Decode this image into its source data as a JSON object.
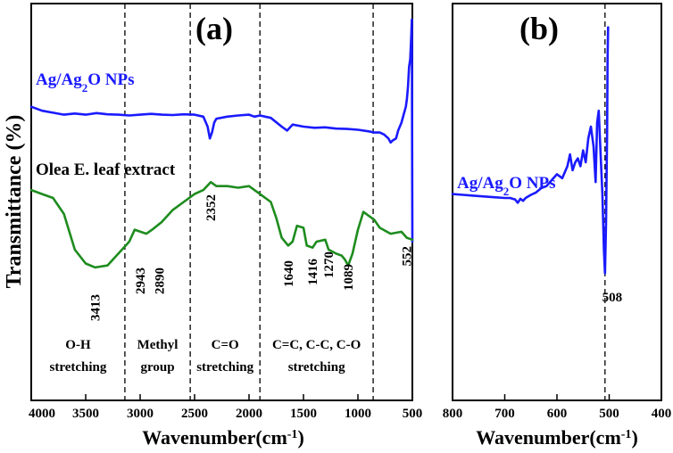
{
  "chart_data": [
    {
      "type": "line",
      "panel_label": "(a)",
      "xlabel": "Wavenumber(cm",
      "xlabel_sup": "-1",
      "xlabel_end": ")",
      "ylabel": "Transmittance (%)",
      "xlim": [
        4000,
        500
      ],
      "ylim": [
        0,
        100
      ],
      "y_ticks_shown": false,
      "x_ticks": [
        4000,
        3500,
        3000,
        2500,
        2000,
        1500,
        1000,
        500
      ],
      "x_tick_labels": [
        "4000",
        "3500",
        "3000",
        "2500",
        "2000",
        "1500",
        "1000",
        "500"
      ],
      "dashed_lines": [
        3140,
        2540,
        1900,
        860
      ],
      "series": [
        {
          "name": "Ag/Ag2O NPs",
          "label_main": "Ag/Ag",
          "label_sub": "2",
          "label_end": "O NPs",
          "color": "#1a1aff",
          "x": [
            4000,
            3900,
            3800,
            3700,
            3600,
            3500,
            3400,
            3300,
            3200,
            3100,
            3000,
            2900,
            2800,
            2700,
            2600,
            2500,
            2420,
            2380,
            2360,
            2340,
            2320,
            2300,
            2200,
            2100,
            2000,
            1950,
            1900,
            1800,
            1700,
            1650,
            1600,
            1500,
            1400,
            1300,
            1200,
            1100,
            1000,
            900,
            850,
            800,
            760,
            720,
            700,
            680,
            650,
            630,
            600,
            580,
            560,
            550,
            540,
            530,
            520,
            510,
            505,
            500
          ],
          "y": [
            74,
            73,
            72.5,
            72,
            72.3,
            72,
            72.4,
            72.1,
            72,
            71.8,
            72,
            72.2,
            72,
            71.9,
            72.1,
            72,
            71.5,
            69,
            66,
            67.5,
            70,
            71,
            71.5,
            71.8,
            72,
            71.5,
            71.8,
            71.2,
            69,
            68,
            69.5,
            69,
            68.7,
            68.8,
            68.5,
            68.4,
            68.2,
            67.8,
            67.5,
            67.5,
            67,
            66,
            65,
            65.5,
            66,
            68,
            70,
            72,
            74,
            76,
            79,
            84,
            86,
            92,
            96,
            40
          ],
          "peaks": []
        },
        {
          "name": "Olea E. leaf extract",
          "label_main": "Olea E. leaf extract",
          "color": "#1e8c1e",
          "x": [
            4000,
            3900,
            3800,
            3700,
            3600,
            3500,
            3413,
            3300,
            3200,
            3100,
            3050,
            2943,
            2890,
            2800,
            2700,
            2600,
            2500,
            2420,
            2352,
            2300,
            2200,
            2100,
            2000,
            1900,
            1800,
            1750,
            1700,
            1640,
            1600,
            1560,
            1500,
            1470,
            1416,
            1380,
            1300,
            1270,
            1200,
            1150,
            1120,
            1089,
            1050,
            1000,
            950,
            900,
            850,
            800,
            700,
            600,
            552,
            500
          ],
          "y": [
            53,
            52,
            51,
            47,
            38,
            34.5,
            33.5,
            34,
            37,
            40,
            43,
            42,
            43,
            45,
            48,
            50,
            52,
            53,
            55,
            54,
            54,
            53.6,
            54,
            52,
            50,
            46,
            41,
            39,
            40,
            44,
            43.5,
            39,
            38.5,
            40,
            40.5,
            38,
            37,
            36.5,
            35.5,
            34,
            37,
            43,
            47.5,
            46.5,
            45.5,
            43.5,
            42,
            42.5,
            41,
            40.5
          ],
          "peaks": [
            3413,
            2943,
            2890,
            2352,
            1640,
            1416,
            1270,
            1089,
            552
          ],
          "peak_labels": [
            "3413",
            "2943",
            "2890",
            "2352",
            "1640",
            "1416",
            "1270",
            "1089",
            "552"
          ]
        }
      ],
      "regions": [
        {
          "center": 3570,
          "line1": "O-H",
          "line2": "stretching"
        },
        {
          "center": 2840,
          "line1": "Methyl",
          "line2": "group"
        },
        {
          "center": 2220,
          "line1": "C=O",
          "line2": "stretching"
        },
        {
          "center": 1380,
          "line1": "C=C, C-C, C-O",
          "line2": "stretching"
        }
      ]
    },
    {
      "type": "line",
      "panel_label": "(b)",
      "xlabel": "Wavenumber(cm",
      "xlabel_sup": "-1",
      "xlabel_end": ")",
      "xlim": [
        800,
        400
      ],
      "ylim": [
        0,
        100
      ],
      "x_ticks": [
        800,
        700,
        600,
        500,
        400
      ],
      "x_tick_labels": [
        "800",
        "700",
        "600",
        "500",
        "400"
      ],
      "dashed_lines": [
        508
      ],
      "series": [
        {
          "name": "Ag/Ag2O NPs",
          "label_main": "Ag/Ag",
          "label_sub": "2",
          "label_end": "O NPs",
          "color": "#1a1aff",
          "x": [
            800,
            780,
            760,
            740,
            720,
            700,
            690,
            680,
            675,
            670,
            665,
            660,
            650,
            640,
            630,
            620,
            610,
            600,
            590,
            580,
            575,
            570,
            565,
            560,
            555,
            550,
            545,
            540,
            535,
            530,
            526,
            523,
            520,
            516,
            513,
            510,
            508,
            506,
            504,
            503,
            502
          ],
          "y": [
            52,
            51.8,
            51.6,
            51.4,
            51.2,
            51,
            51,
            50.6,
            49.8,
            50.8,
            50.3,
            51,
            51.8,
            52.4,
            53.5,
            54,
            55.5,
            57,
            56,
            59,
            62,
            58,
            60,
            61,
            59,
            63,
            60,
            66,
            69,
            64,
            55,
            70,
            73,
            61,
            52,
            38,
            32,
            45,
            68,
            86,
            94
          ],
          "peaks": [
            508
          ],
          "peak_labels": [
            "508"
          ]
        }
      ]
    }
  ]
}
